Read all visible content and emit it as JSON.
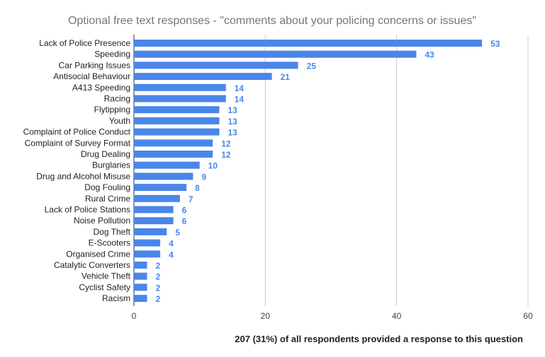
{
  "chart_data": {
    "type": "bar",
    "orientation": "horizontal",
    "title": "Optional free text responses - \"comments about your policing concerns or issues\"",
    "footnote": "207 (31%) of all respondents provided a response to this question",
    "categories": [
      "Lack of Police Presence",
      "Speeding",
      "Car Parking Issues",
      "Antisocial Behaviour",
      "A413 Speeding",
      "Racing",
      "Flytipping",
      "Youth",
      "Complaint of Police Conduct",
      "Complaint of Survey Format",
      "Drug Dealing",
      "Burglaries",
      "Drug and Alcohol Misuse",
      "Dog Fouling",
      "Rural Crime",
      "Lack of Police Stations",
      "Noise Pollution",
      "Dog Theft",
      "E-Scooters",
      "Organised Crime",
      "Catalytic Converters",
      "Vehicle Theft",
      "Cyclist Safety",
      "Racism"
    ],
    "values": [
      53,
      43,
      25,
      21,
      14,
      14,
      13,
      13,
      13,
      12,
      12,
      10,
      9,
      8,
      7,
      6,
      6,
      5,
      4,
      4,
      2,
      2,
      2,
      2
    ],
    "xlim": [
      0,
      60
    ],
    "xticks": [
      0,
      20,
      40,
      60
    ],
    "grid": true,
    "legend": "none",
    "data_labels": true,
    "colors": {
      "bar": "#4a86e8",
      "label": "#4a86e8",
      "gridline": "#cccccc",
      "axis_text": "#444444",
      "title": "#757575",
      "category_text": "#222222",
      "footnote_text": "#222222"
    }
  }
}
